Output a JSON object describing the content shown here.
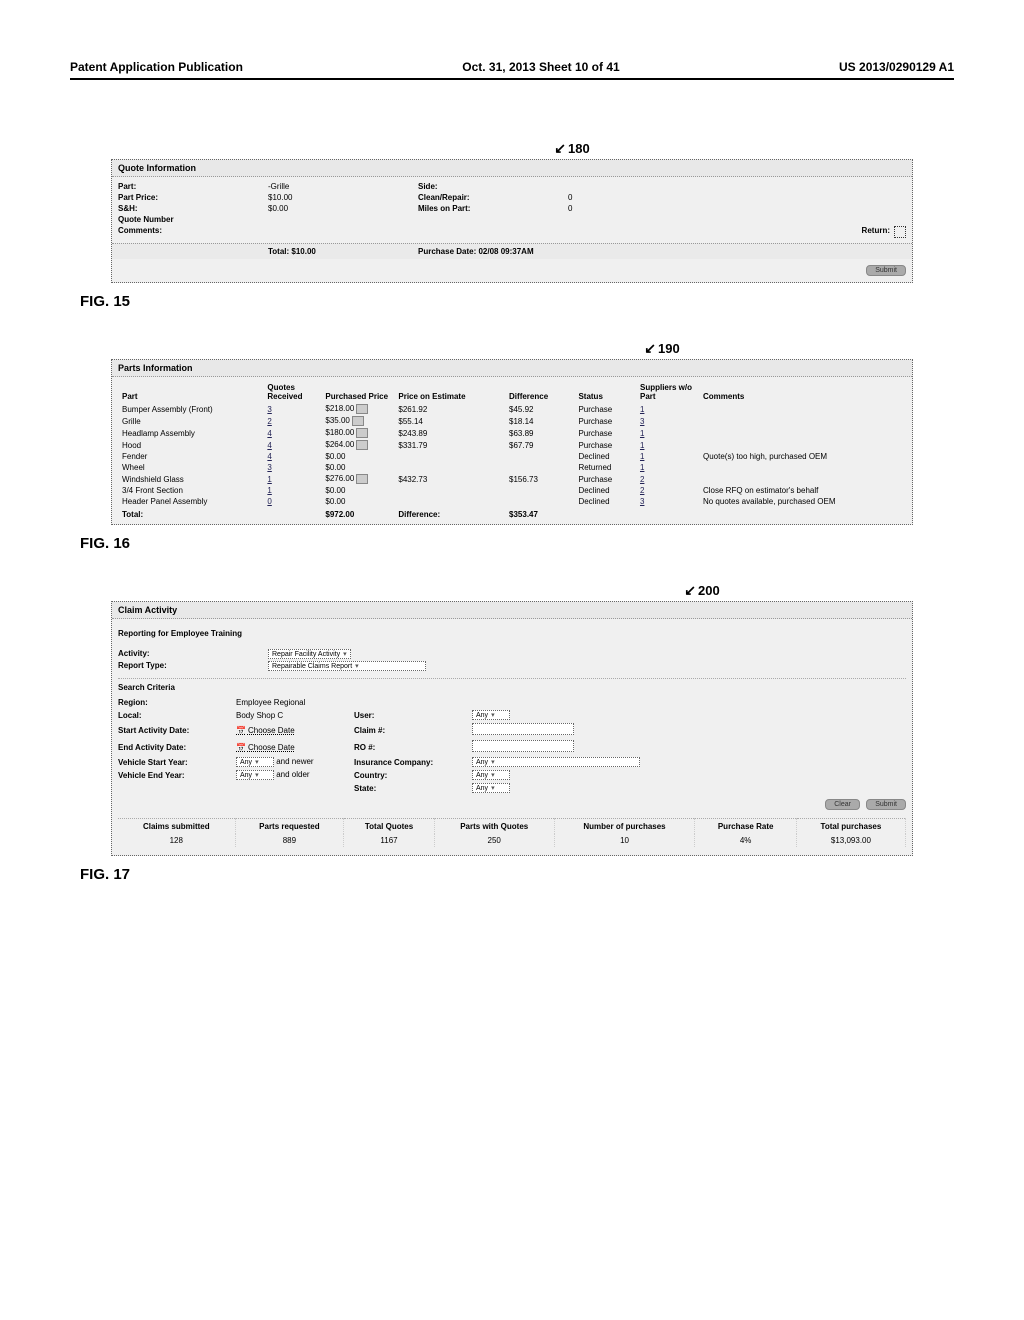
{
  "header": {
    "left": "Patent Application Publication",
    "center": "Oct. 31, 2013  Sheet 10 of 41",
    "right": "US 2013/0290129 A1"
  },
  "fig15": {
    "ref": "180",
    "title": "Quote Information",
    "rows": [
      {
        "l1": "Part:",
        "v1": "-Grille",
        "l2": "Side:",
        "v2": ""
      },
      {
        "l1": "Part Price:",
        "v1": "$10.00",
        "l2": "Clean/Repair:",
        "v2": "0"
      },
      {
        "l1": "S&H:",
        "v1": "$0.00",
        "l2": "Miles on Part:",
        "v2": "0"
      },
      {
        "l1": "Quote Number",
        "v1": "",
        "l2": "",
        "v2": ""
      }
    ],
    "comments_label": "Comments:",
    "return_label": "Return:",
    "total_label": "Total: $10.00",
    "purchase_label": "Purchase Date: 02/08 09:37AM",
    "btn": "Submit",
    "fig_label": "FIG. 15"
  },
  "fig16": {
    "ref": "190",
    "title": "Parts Information",
    "columns": [
      "Part",
      "Quotes Received",
      "Purchased Price",
      "Price on Estimate",
      "Difference",
      "Status",
      "Suppliers w/o Part",
      "Comments"
    ],
    "rows": [
      {
        "part": "Bumper Assembly (Front)",
        "qr": "3",
        "pp": "$218.00",
        "icon": true,
        "pe": "$261.92",
        "diff": "$45.92",
        "status": "Purchase",
        "sup": "1",
        "cmt": ""
      },
      {
        "part": "Grille",
        "qr": "2",
        "pp": "$35.00",
        "icon": true,
        "pe": "$55.14",
        "diff": "$18.14",
        "status": "Purchase",
        "sup": "3",
        "cmt": ""
      },
      {
        "part": "Headlamp Assembly",
        "qr": "4",
        "pp": "$180.00",
        "icon": true,
        "pe": "$243.89",
        "diff": "$63.89",
        "status": "Purchase",
        "sup": "1",
        "cmt": ""
      },
      {
        "part": "Hood",
        "qr": "4",
        "pp": "$264.00",
        "icon": true,
        "pe": "$331.79",
        "diff": "$67.79",
        "status": "Purchase",
        "sup": "1",
        "cmt": ""
      },
      {
        "part": "Fender",
        "qr": "4",
        "pp": "$0.00",
        "icon": false,
        "pe": "",
        "diff": "",
        "status": "Declined",
        "sup": "1",
        "cmt": "Quote(s) too high, purchased OEM"
      },
      {
        "part": "Wheel",
        "qr": "3",
        "pp": "$0.00",
        "icon": false,
        "pe": "",
        "diff": "",
        "status": "Returned",
        "sup": "1",
        "cmt": ""
      },
      {
        "part": "Windshield Glass",
        "qr": "1",
        "pp": "$276.00",
        "icon": true,
        "pe": "$432.73",
        "diff": "$156.73",
        "status": "Purchase",
        "sup": "2",
        "cmt": ""
      },
      {
        "part": "3/4 Front Section",
        "qr": "1",
        "pp": "$0.00",
        "icon": false,
        "pe": "",
        "diff": "",
        "status": "Declined",
        "sup": "2",
        "cmt": "Close RFQ on estimator's behalf"
      },
      {
        "part": "Header Panel Assembly",
        "qr": "0",
        "pp": "$0.00",
        "icon": false,
        "pe": "",
        "diff": "",
        "status": "Declined",
        "sup": "3",
        "cmt": "No quotes available, purchased OEM"
      }
    ],
    "total_label": "Total:",
    "total_pp": "$972.00",
    "diff_label": "Difference:",
    "total_diff": "$353.47",
    "fig_label": "FIG. 16"
  },
  "fig17": {
    "ref": "200",
    "title": "Claim Activity",
    "subtitle": "Reporting for Employee Training",
    "activity_label": "Activity:",
    "activity_val": "Repair Facility Activity",
    "report_label": "Report Type:",
    "report_val": "Repairable Claims Report",
    "criteria_title": "Search Criteria",
    "criteria": {
      "region_l": "Region:",
      "region_v": "Employee Regional",
      "local_l": "Local:",
      "local_v": "Body Shop C",
      "user_l": "User:",
      "user_v": "Any",
      "start_l": "Start Activity Date:",
      "start_v": "Choose Date",
      "claim_l": "Claim #:",
      "end_l": "End Activity Date:",
      "end_v": "Choose Date",
      "ro_l": "RO #:",
      "vstart_l": "Vehicle Start Year:",
      "vstart_v": "Any",
      "vstart_suf": "and newer",
      "ins_l": "Insurance Company:",
      "ins_v": "Any",
      "vend_l": "Vehicle End Year:",
      "vend_v": "Any",
      "vend_suf": "and older",
      "country_l": "Country:",
      "country_v": "Any",
      "state_l": "State:",
      "state_v": "Any"
    },
    "btn_clear": "Clear",
    "btn_submit": "Submit",
    "summary_cols": [
      "Claims submitted",
      "Parts requested",
      "Total Quotes",
      "Parts with Quotes",
      "Number of purchases",
      "Purchase Rate",
      "Total purchases"
    ],
    "summary_vals": [
      "128",
      "889",
      "1167",
      "250",
      "10",
      "4%",
      "$13,093.00"
    ],
    "fig_label": "FIG. 17"
  }
}
